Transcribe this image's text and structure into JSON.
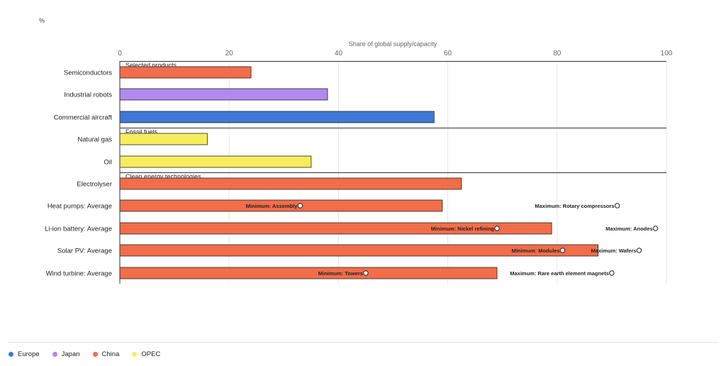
{
  "chart_data": {
    "type": "bar",
    "orientation": "horizontal",
    "unit_label": "%",
    "xlabel": "Share of global supply/capacity",
    "xlim": [
      0,
      100
    ],
    "x_ticks": [
      "0",
      "20",
      "40",
      "60",
      "80",
      "100"
    ],
    "grid": true,
    "groups": [
      {
        "label": "Selected products",
        "start": 0
      },
      {
        "label": "Fossil fuels",
        "start": 3
      },
      {
        "label": "Clean energy technologies",
        "start": 5
      }
    ],
    "categories": [
      "Semiconductors",
      "Industrial robots",
      "Commercial aircraft",
      "Natural gas",
      "Oil",
      "Electrolyser",
      "Heat pumps: Average",
      "Li-ion battery: Average",
      "Solar PV: Average",
      "Wind turbine: Average"
    ],
    "values": [
      24,
      38,
      57.5,
      16,
      35,
      62.5,
      59,
      79,
      87.5,
      69
    ],
    "bar_colors": [
      "#f26d4a",
      "#b18af0",
      "#3d78d6",
      "#f7ed5c",
      "#f7ed5c",
      "#f26d4a",
      "#f26d4a",
      "#f26d4a",
      "#f26d4a",
      "#f26d4a"
    ],
    "annotations": [
      {
        "category": "Heat pumps: Average",
        "kind": "min",
        "text": "Minimum: Assembly",
        "value": 33
      },
      {
        "category": "Heat pumps: Average",
        "kind": "max",
        "text": "Maximum: Rotary compressors",
        "value": 91
      },
      {
        "category": "Li-ion battery: Average",
        "kind": "min",
        "text": "Minimum: Nickel refining",
        "value": 69
      },
      {
        "category": "Li-ion battery: Average",
        "kind": "max",
        "text": "Maximum: Anodes",
        "value": 98
      },
      {
        "category": "Solar PV: Average",
        "kind": "min",
        "text": "Minimum: Modules",
        "value": 81
      },
      {
        "category": "Solar PV: Average",
        "kind": "max",
        "text": "Maximum: Wafers",
        "value": 95
      },
      {
        "category": "Wind turbine: Average",
        "kind": "min",
        "text": "Minimum: Towers",
        "value": 45
      },
      {
        "category": "Wind turbine: Average",
        "kind": "max",
        "text": "Maximum: Rare earth element magnets",
        "value": 90
      }
    ],
    "legend": {
      "placement": "bottom-left",
      "items": [
        {
          "label": "Europe",
          "color": "#3d78d6"
        },
        {
          "label": "Japan",
          "color": "#b18af0"
        },
        {
          "label": "China",
          "color": "#f26d4a"
        },
        {
          "label": "OPEC",
          "color": "#f7ed5c"
        }
      ]
    }
  }
}
